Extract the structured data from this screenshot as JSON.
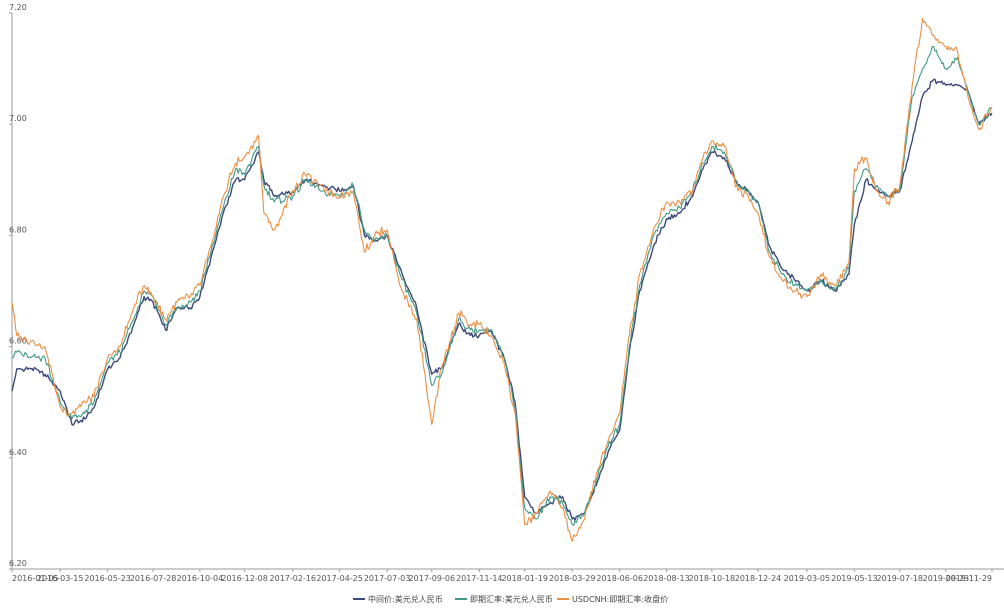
{
  "chart_data": {
    "type": "line",
    "title": "",
    "xlabel": "",
    "ylabel": "",
    "ylim": [
      6.2,
      7.2
    ],
    "yticks": [
      "6.20",
      "6.40",
      "6.60",
      "6.80",
      "7.00",
      "7.20"
    ],
    "xlim": [
      "2016-01-05",
      "2019-11-29"
    ],
    "xticks": [
      "2016-01-05",
      "2016-03-15",
      "2016-05-23",
      "2016-07-28",
      "2016-10-04",
      "2016-12-08",
      "2017-02-16",
      "2017-04-25",
      "2017-07-03",
      "2017-09-06",
      "2017-11-14",
      "2018-01-19",
      "2018-03-29",
      "2018-06-06",
      "2018-08-13",
      "2018-10-18",
      "2018-12-24",
      "2019-03-05",
      "2019-05-13",
      "2019-07-18",
      "2019-09-23",
      "2019-11-29"
    ],
    "grid": false,
    "legend": "bottom-center",
    "series": [
      {
        "name": "中间价:美元兑人民币",
        "color": "#3d4a7a",
        "x": [
          "2016-01-05",
          "2016-01-12",
          "2016-02-01",
          "2016-02-22",
          "2016-03-15",
          "2016-04-01",
          "2016-04-20",
          "2016-05-03",
          "2016-05-23",
          "2016-06-10",
          "2016-06-30",
          "2016-07-15",
          "2016-07-28",
          "2016-08-15",
          "2016-09-01",
          "2016-09-20",
          "2016-10-04",
          "2016-10-20",
          "2016-11-07",
          "2016-11-25",
          "2016-12-08",
          "2016-12-28",
          "2017-01-05",
          "2017-01-20",
          "2017-02-16",
          "2017-03-06",
          "2017-03-28",
          "2017-04-25",
          "2017-05-15",
          "2017-05-31",
          "2017-06-15",
          "2017-07-03",
          "2017-07-25",
          "2017-08-15",
          "2017-09-06",
          "2017-09-20",
          "2017-10-15",
          "2017-11-01",
          "2017-11-14",
          "2017-12-01",
          "2017-12-20",
          "2018-01-05",
          "2018-01-19",
          "2018-02-05",
          "2018-02-25",
          "2018-03-15",
          "2018-03-29",
          "2018-04-16",
          "2018-05-03",
          "2018-05-20",
          "2018-06-06",
          "2018-06-20",
          "2018-07-05",
          "2018-07-25",
          "2018-08-13",
          "2018-09-01",
          "2018-09-20",
          "2018-10-05",
          "2018-10-18",
          "2018-11-05",
          "2018-11-25",
          "2018-12-10",
          "2018-12-24",
          "2019-01-10",
          "2019-01-28",
          "2019-02-15",
          "2019-03-05",
          "2019-03-25",
          "2019-04-15",
          "2019-05-05",
          "2019-05-13",
          "2019-05-30",
          "2019-06-15",
          "2019-07-01",
          "2019-07-18",
          "2019-08-05",
          "2019-08-20",
          "2019-09-05",
          "2019-09-23",
          "2019-10-10",
          "2019-10-25",
          "2019-11-10",
          "2019-11-29"
        ],
        "values": [
          6.52,
          6.56,
          6.56,
          6.55,
          6.52,
          6.46,
          6.47,
          6.49,
          6.56,
          6.58,
          6.64,
          6.69,
          6.68,
          6.63,
          6.67,
          6.67,
          6.69,
          6.76,
          6.84,
          6.9,
          6.9,
          6.95,
          6.9,
          6.87,
          6.88,
          6.9,
          6.89,
          6.88,
          6.89,
          6.8,
          6.79,
          6.8,
          6.73,
          6.67,
          6.55,
          6.56,
          6.64,
          6.62,
          6.62,
          6.63,
          6.58,
          6.5,
          6.33,
          6.3,
          6.32,
          6.33,
          6.29,
          6.3,
          6.35,
          6.41,
          6.45,
          6.59,
          6.7,
          6.78,
          6.83,
          6.84,
          6.87,
          6.92,
          6.95,
          6.94,
          6.89,
          6.88,
          6.86,
          6.78,
          6.74,
          6.72,
          6.7,
          6.72,
          6.7,
          6.73,
          6.82,
          6.9,
          6.88,
          6.87,
          6.88,
          6.97,
          7.05,
          7.08,
          7.07,
          7.07,
          7.06,
          7.0,
          7.02
        ]
      },
      {
        "name": "即期汇率:美元兑人民币",
        "color": "#3e9a86",
        "x": [
          "2016-01-05",
          "2016-01-12",
          "2016-02-01",
          "2016-02-22",
          "2016-03-15",
          "2016-04-01",
          "2016-04-20",
          "2016-05-03",
          "2016-05-23",
          "2016-06-10",
          "2016-06-30",
          "2016-07-15",
          "2016-07-28",
          "2016-08-15",
          "2016-09-01",
          "2016-09-20",
          "2016-10-04",
          "2016-10-20",
          "2016-11-07",
          "2016-11-25",
          "2016-12-08",
          "2016-12-28",
          "2017-01-05",
          "2017-01-20",
          "2017-02-16",
          "2017-03-06",
          "2017-03-28",
          "2017-04-25",
          "2017-05-15",
          "2017-05-31",
          "2017-06-15",
          "2017-07-03",
          "2017-07-25",
          "2017-08-15",
          "2017-09-06",
          "2017-09-20",
          "2017-10-15",
          "2017-11-01",
          "2017-11-14",
          "2017-12-01",
          "2017-12-20",
          "2018-01-05",
          "2018-01-19",
          "2018-02-05",
          "2018-02-25",
          "2018-03-15",
          "2018-03-29",
          "2018-04-16",
          "2018-05-03",
          "2018-05-20",
          "2018-06-06",
          "2018-06-20",
          "2018-07-05",
          "2018-07-25",
          "2018-08-13",
          "2018-09-01",
          "2018-09-20",
          "2018-10-05",
          "2018-10-18",
          "2018-11-05",
          "2018-11-25",
          "2018-12-10",
          "2018-12-24",
          "2019-01-10",
          "2019-01-28",
          "2019-02-15",
          "2019-03-05",
          "2019-03-25",
          "2019-04-15",
          "2019-05-05",
          "2019-05-13",
          "2019-05-30",
          "2019-06-15",
          "2019-07-01",
          "2019-07-18",
          "2019-08-05",
          "2019-08-20",
          "2019-09-05",
          "2019-09-23",
          "2019-10-10",
          "2019-10-25",
          "2019-11-10",
          "2019-11-29"
        ],
        "values": [
          6.58,
          6.59,
          6.58,
          6.58,
          6.5,
          6.47,
          6.48,
          6.5,
          6.57,
          6.59,
          6.65,
          6.7,
          6.69,
          6.64,
          6.67,
          6.68,
          6.7,
          6.77,
          6.85,
          6.92,
          6.91,
          6.96,
          6.89,
          6.86,
          6.87,
          6.9,
          6.88,
          6.87,
          6.89,
          6.81,
          6.79,
          6.8,
          6.72,
          6.66,
          6.53,
          6.55,
          6.65,
          6.63,
          6.63,
          6.63,
          6.58,
          6.49,
          6.31,
          6.29,
          6.33,
          6.32,
          6.28,
          6.3,
          6.36,
          6.42,
          6.46,
          6.6,
          6.71,
          6.8,
          6.84,
          6.85,
          6.88,
          6.93,
          6.96,
          6.95,
          6.89,
          6.88,
          6.86,
          6.77,
          6.73,
          6.71,
          6.7,
          6.72,
          6.7,
          6.74,
          6.88,
          6.92,
          6.89,
          6.87,
          6.88,
          7.05,
          7.1,
          7.14,
          7.1,
          7.12,
          7.06,
          7.0,
          7.03
        ]
      },
      {
        "name": "USDCNH:即期汇率:收盘价",
        "color": "#ec8e42",
        "x": [
          "2016-01-05",
          "2016-01-12",
          "2016-02-01",
          "2016-02-22",
          "2016-03-15",
          "2016-04-01",
          "2016-04-20",
          "2016-05-03",
          "2016-05-23",
          "2016-06-10",
          "2016-06-30",
          "2016-07-15",
          "2016-07-28",
          "2016-08-15",
          "2016-09-01",
          "2016-09-20",
          "2016-10-04",
          "2016-10-20",
          "2016-11-07",
          "2016-11-25",
          "2016-12-08",
          "2016-12-28",
          "2017-01-05",
          "2017-01-20",
          "2017-02-16",
          "2017-03-06",
          "2017-03-28",
          "2017-04-25",
          "2017-05-15",
          "2017-05-31",
          "2017-06-15",
          "2017-07-03",
          "2017-07-25",
          "2017-08-15",
          "2017-09-06",
          "2017-09-20",
          "2017-10-15",
          "2017-11-01",
          "2017-11-14",
          "2017-12-01",
          "2017-12-20",
          "2018-01-05",
          "2018-01-19",
          "2018-02-05",
          "2018-02-25",
          "2018-03-15",
          "2018-03-29",
          "2018-04-16",
          "2018-05-03",
          "2018-05-20",
          "2018-06-06",
          "2018-06-20",
          "2018-07-05",
          "2018-07-25",
          "2018-08-13",
          "2018-09-01",
          "2018-09-20",
          "2018-10-05",
          "2018-10-18",
          "2018-11-05",
          "2018-11-25",
          "2018-12-10",
          "2018-12-24",
          "2019-01-10",
          "2019-01-28",
          "2019-02-15",
          "2019-03-05",
          "2019-03-25",
          "2019-04-15",
          "2019-05-05",
          "2019-05-13",
          "2019-05-30",
          "2019-06-15",
          "2019-07-01",
          "2019-07-18",
          "2019-08-05",
          "2019-08-20",
          "2019-09-05",
          "2019-09-23",
          "2019-10-10",
          "2019-10-25",
          "2019-11-10",
          "2019-11-29"
        ],
        "values": [
          6.68,
          6.62,
          6.61,
          6.6,
          6.49,
          6.48,
          6.5,
          6.51,
          6.58,
          6.6,
          6.67,
          6.71,
          6.69,
          6.65,
          6.68,
          6.69,
          6.71,
          6.78,
          6.87,
          6.93,
          6.94,
          6.98,
          6.84,
          6.81,
          6.88,
          6.91,
          6.89,
          6.87,
          6.88,
          6.77,
          6.8,
          6.81,
          6.7,
          6.65,
          6.46,
          6.56,
          6.66,
          6.64,
          6.64,
          6.62,
          6.57,
          6.48,
          6.28,
          6.3,
          6.34,
          6.31,
          6.25,
          6.29,
          6.37,
          6.43,
          6.48,
          6.62,
          6.73,
          6.81,
          6.86,
          6.86,
          6.88,
          6.94,
          6.97,
          6.96,
          6.88,
          6.87,
          6.84,
          6.76,
          6.72,
          6.7,
          6.69,
          6.73,
          6.71,
          6.75,
          6.92,
          6.94,
          6.88,
          6.86,
          6.89,
          7.07,
          7.19,
          7.16,
          7.14,
          7.13,
          7.05,
          6.99,
          7.03
        ]
      }
    ]
  }
}
